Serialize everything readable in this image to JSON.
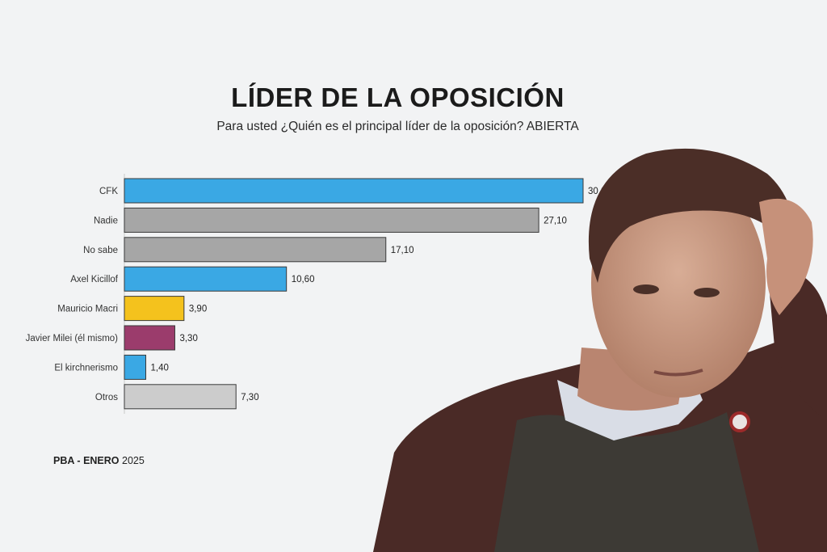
{
  "chart_data": {
    "type": "bar",
    "orientation": "horizontal",
    "title": "LÍDER DE LA OPOSICIÓN",
    "subtitle": "Para usted ¿Quién es el principal líder de la oposición? ABIERTA",
    "categories": [
      "CFK",
      "Nadie",
      "No sabe",
      "Axel Kicillof",
      "Mauricio Macri",
      "Javier Milei (él mismo)",
      "El kirchnerismo",
      "Otros"
    ],
    "values": [
      30.0,
      27.1,
      17.1,
      10.6,
      3.9,
      3.3,
      1.4,
      7.3
    ],
    "value_labels": [
      "30,00",
      "27,10",
      "17,10",
      "10,60",
      "3,90",
      "3,30",
      "1,40",
      "7,30"
    ],
    "colors": [
      "#3aa8e4",
      "#a6a6a6",
      "#a6a6a6",
      "#3aa8e4",
      "#f4c21d",
      "#9b3c6c",
      "#3aa8e4",
      "#cccccc"
    ],
    "xlim": [
      0,
      30
    ],
    "grid": false,
    "legend": "none"
  },
  "footer": {
    "region": "PBA -",
    "month": "ENERO",
    "year": "2025"
  }
}
